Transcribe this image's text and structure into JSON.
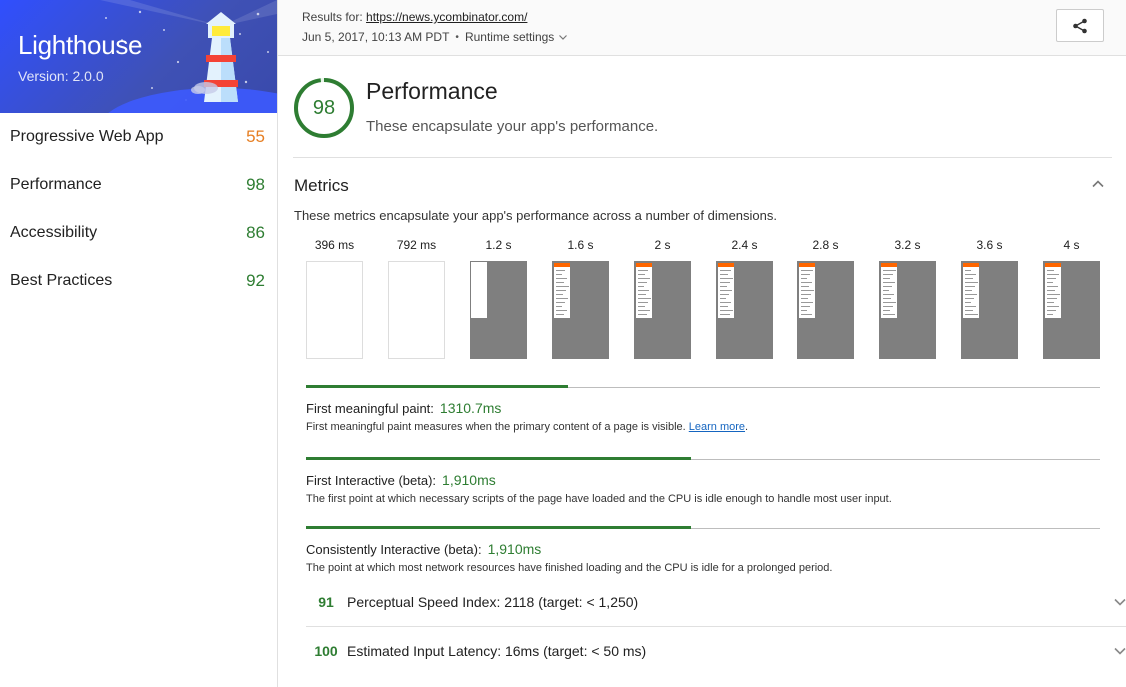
{
  "brand": {
    "title": "Lighthouse",
    "version": "Version: 2.0.0"
  },
  "sidebar": {
    "items": [
      {
        "label": "Progressive Web App",
        "score": "55"
      },
      {
        "label": "Performance",
        "score": "98"
      },
      {
        "label": "Accessibility",
        "score": "86"
      },
      {
        "label": "Best Practices",
        "score": "92"
      }
    ]
  },
  "header": {
    "results_prefix": "Results for: ",
    "url": "https://news.ycombinator.com/",
    "date": "Jun 5, 2017, 10:13 AM PDT",
    "separator": "•",
    "runtime_label": "Runtime settings"
  },
  "performance": {
    "score": "98",
    "score_fraction": 0.98,
    "title": "Performance",
    "description": "These encapsulate your app's performance."
  },
  "metrics": {
    "title": "Metrics",
    "description": "These metrics encapsulate your app's performance across a number of dimensions.",
    "filmstrip": [
      "396 ms",
      "792 ms",
      "1.2 s",
      "1.6 s",
      "2 s",
      "2.4 s",
      "2.8 s",
      "3.2 s",
      "3.6 s",
      "4 s"
    ],
    "items": [
      {
        "label": "First meaningful paint:",
        "value": "1310.7ms",
        "fill_fraction": 0.33,
        "help": "First meaningful paint measures when the primary content of a page is visible.",
        "link": "Learn more",
        "suffix": "."
      },
      {
        "label": "First Interactive (beta):",
        "value": "1,910ms",
        "fill_fraction": 0.485,
        "help": "The first point at which necessary scripts of the page have loaded and the CPU is idle enough to handle most user input."
      },
      {
        "label": "Consistently Interactive (beta):",
        "value": "1,910ms",
        "fill_fraction": 0.485,
        "help": "The point at which most network resources have finished loading and the CPU is idle for a prolonged period."
      }
    ],
    "audits": [
      {
        "score": "91",
        "text": "Perceptual Speed Index: 2118 (target: < 1,250)"
      },
      {
        "score": "100",
        "text": "Estimated Input Latency: 16ms (target: < 50 ms)"
      }
    ]
  },
  "colors": {
    "good": "#2e7d32",
    "average": "#e67e22",
    "brand": "#304ffe"
  },
  "icons": {
    "share": "share-icon",
    "runtime": "chevron-down-icon",
    "collapse": "chevron-up-icon",
    "expand": "chevron-down-icon"
  }
}
